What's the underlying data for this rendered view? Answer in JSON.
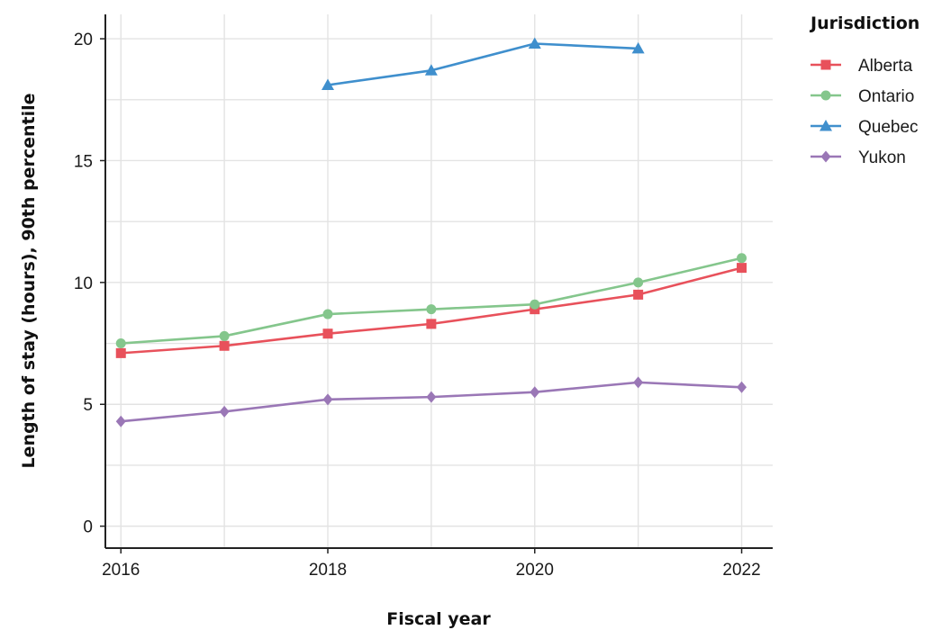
{
  "chart_data": {
    "type": "line",
    "title": "",
    "xlabel": "Fiscal year",
    "ylabel": "Length of stay (hours), 90th percentile",
    "xlim": [
      2015.85,
      2022.3
    ],
    "ylim": [
      -0.9,
      21
    ],
    "x_ticks": [
      2016,
      2018,
      2020,
      2022
    ],
    "y_ticks": [
      0,
      5,
      10,
      15,
      20
    ],
    "grid": true,
    "legend": {
      "title": "Jurisdiction",
      "placement": "right"
    },
    "series": [
      {
        "name": "Alberta",
        "color": "#e8515b",
        "marker": "square",
        "x": [
          2016,
          2017,
          2018,
          2019,
          2020,
          2021,
          2022
        ],
        "y": [
          7.1,
          7.4,
          7.9,
          8.3,
          8.9,
          9.5,
          10.6
        ]
      },
      {
        "name": "Ontario",
        "color": "#84c68c",
        "marker": "circle",
        "x": [
          2016,
          2017,
          2018,
          2019,
          2020,
          2021,
          2022
        ],
        "y": [
          7.5,
          7.8,
          8.7,
          8.9,
          9.1,
          10.0,
          11.0
        ]
      },
      {
        "name": "Quebec",
        "color": "#3f8fcd",
        "marker": "triangle",
        "x": [
          2018,
          2019,
          2020,
          2021
        ],
        "y": [
          18.1,
          18.7,
          19.8,
          19.6
        ]
      },
      {
        "name": "Yukon",
        "color": "#9a77b6",
        "marker": "diamond",
        "x": [
          2016,
          2017,
          2018,
          2019,
          2020,
          2021,
          2022
        ],
        "y": [
          4.3,
          4.7,
          5.2,
          5.3,
          5.5,
          5.9,
          5.7
        ]
      }
    ]
  }
}
